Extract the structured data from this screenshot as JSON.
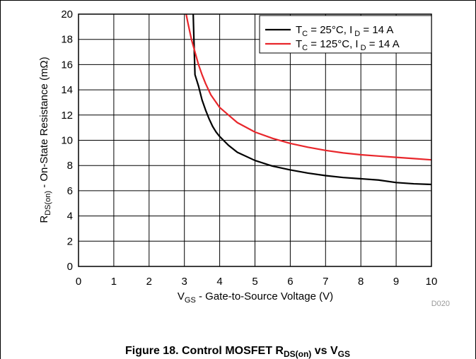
{
  "chart_data": {
    "type": "line",
    "x_ticks": [
      "0",
      "1",
      "2",
      "3",
      "4",
      "5",
      "6",
      "7",
      "8",
      "9",
      "10"
    ],
    "y_ticks": [
      "0",
      "2",
      "4",
      "6",
      "8",
      "10",
      "12",
      "14",
      "16",
      "18",
      "20"
    ],
    "xlim": [
      0,
      10
    ],
    "ylim": [
      0,
      20
    ],
    "grid": true,
    "legend_position": "top-right",
    "xlabel": {
      "main": "V",
      "sub": "GS",
      "rest": " - Gate-to-Source Voltage (V)"
    },
    "ylabel": {
      "main": "R",
      "sub": "DS(on)",
      "rest": " - On-State Resistance (mΩ)"
    },
    "figure_code": "D020",
    "caption": {
      "text": "Figure 18. Control MOSFET R",
      "sub1": "DS(on)",
      "mid": " vs V",
      "sub2": "GS"
    },
    "series": [
      {
        "name": {
          "a": "T",
          "a_sub": "C",
          "b": " = 25°C, I",
          "b_sub": " D",
          "c": " = 14 A"
        },
        "color": "#000000",
        "points": [
          [
            3.25,
            20
          ],
          [
            3.27,
            18
          ],
          [
            3.3,
            15.2
          ],
          [
            3.4,
            14.3
          ],
          [
            3.5,
            13.2
          ],
          [
            3.6,
            12.4
          ],
          [
            3.7,
            11.7
          ],
          [
            3.8,
            11.1
          ],
          [
            3.9,
            10.65
          ],
          [
            4.0,
            10.3
          ],
          [
            4.25,
            9.6
          ],
          [
            4.5,
            9.05
          ],
          [
            5.0,
            8.4
          ],
          [
            5.5,
            7.95
          ],
          [
            6.0,
            7.65
          ],
          [
            6.5,
            7.4
          ],
          [
            7.0,
            7.2
          ],
          [
            7.5,
            7.05
          ],
          [
            8.0,
            6.95
          ],
          [
            8.5,
            6.85
          ],
          [
            9.0,
            6.65
          ],
          [
            9.5,
            6.55
          ],
          [
            10.0,
            6.5
          ]
        ]
      },
      {
        "name": {
          "a": "T",
          "a_sub": "C",
          "b": " = 125°C, I",
          "b_sub": " D",
          "c": " = 14 A"
        },
        "color": "#e8262b",
        "points": [
          [
            3.05,
            20
          ],
          [
            3.1,
            19.3
          ],
          [
            3.2,
            18
          ],
          [
            3.3,
            17.0
          ],
          [
            3.4,
            16.0
          ],
          [
            3.5,
            15.2
          ],
          [
            3.6,
            14.5
          ],
          [
            3.75,
            13.6
          ],
          [
            4.0,
            12.6
          ],
          [
            4.25,
            12.0
          ],
          [
            4.5,
            11.4
          ],
          [
            5.0,
            10.65
          ],
          [
            5.5,
            10.15
          ],
          [
            6.0,
            9.75
          ],
          [
            6.5,
            9.45
          ],
          [
            7.0,
            9.2
          ],
          [
            7.5,
            9.0
          ],
          [
            8.0,
            8.85
          ],
          [
            8.5,
            8.75
          ],
          [
            9.0,
            8.65
          ],
          [
            9.5,
            8.55
          ],
          [
            10.0,
            8.45
          ]
        ]
      }
    ]
  }
}
